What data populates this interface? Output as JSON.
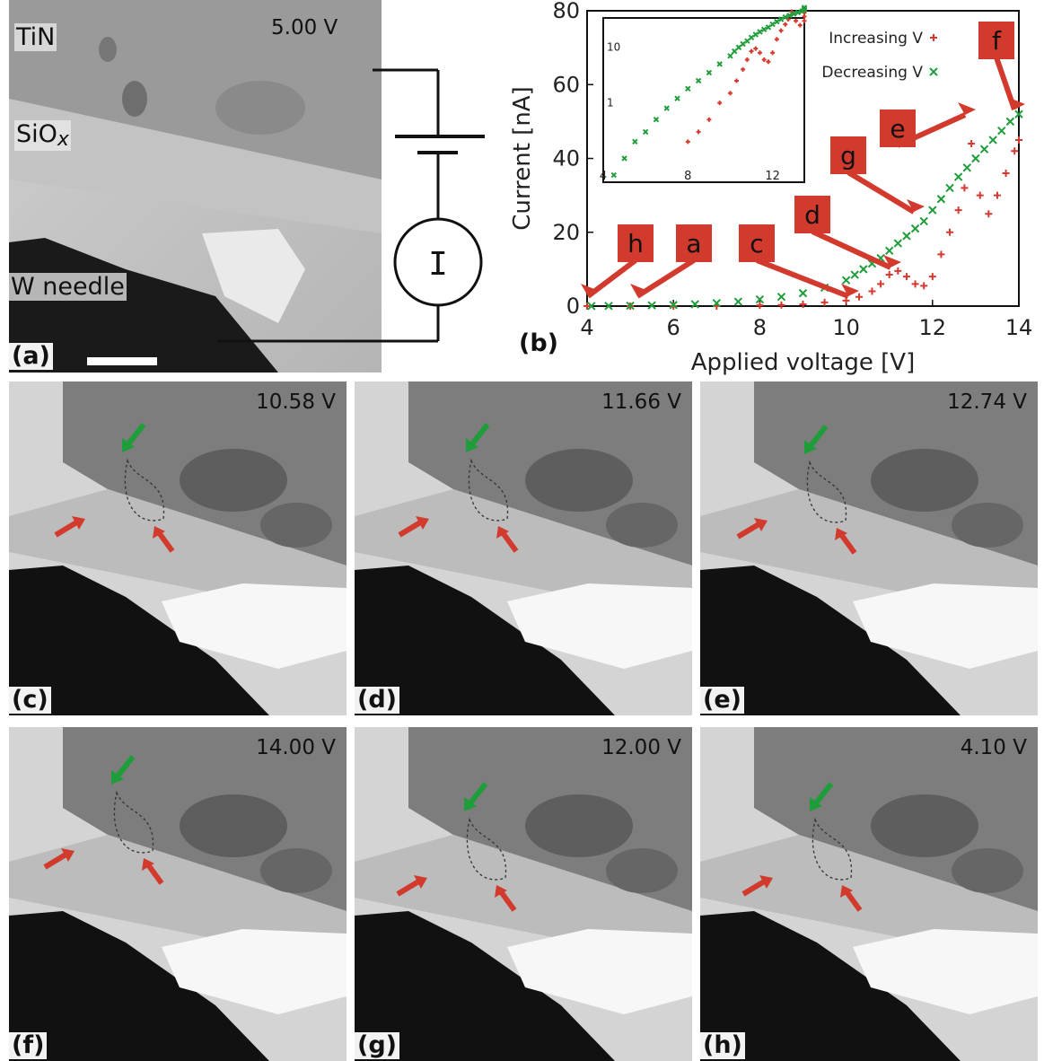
{
  "panel_a": {
    "label": "(a)",
    "voltage": "5.00 V",
    "layers": {
      "tin": "TiN",
      "siox": "SiO",
      "siox_sub": "x",
      "needle": "W needle"
    },
    "meter_symbol": "I"
  },
  "panel_b": {
    "label": "(b)",
    "annotations": [
      "h",
      "a",
      "c",
      "d",
      "g",
      "e",
      "f"
    ]
  },
  "tem_panels": [
    {
      "label": "(c)",
      "voltage": "10.58 V"
    },
    {
      "label": "(d)",
      "voltage": "11.66 V"
    },
    {
      "label": "(e)",
      "voltage": "12.74 V"
    },
    {
      "label": "(f)",
      "voltage": "14.00 V"
    },
    {
      "label": "(g)",
      "voltage": "12.00 V"
    },
    {
      "label": "(h)",
      "voltage": "4.10 V"
    }
  ],
  "colors": {
    "increasing": "#d43a2f",
    "decreasing": "#1f9d3a",
    "callout": "#d23a2e"
  },
  "chart_data": {
    "type": "scatter",
    "xlabel": "Applied voltage [V]",
    "ylabel": "Current [nA]",
    "xlim": [
      4,
      14
    ],
    "ylim": [
      0,
      80
    ],
    "xticks": [
      4,
      6,
      8,
      10,
      12,
      14
    ],
    "yticks": [
      0,
      20,
      40,
      60,
      80
    ],
    "legend_position": "top-right",
    "series": [
      {
        "name": "Increasing V",
        "marker": "+",
        "x": [
          4,
          5,
          6,
          7,
          8,
          8.5,
          9,
          9.5,
          10,
          10.3,
          10.6,
          10.8,
          11,
          11.2,
          11.4,
          11.6,
          11.8,
          12,
          12.2,
          12.4,
          12.6,
          12.74,
          12.9,
          13.1,
          13.3,
          13.5,
          13.7,
          13.9,
          14
        ],
        "y": [
          0,
          0,
          0,
          0,
          0.2,
          0.3,
          0.5,
          1,
          1.5,
          2.5,
          4,
          6,
          8.5,
          9.5,
          8,
          6,
          5.5,
          8,
          14,
          20,
          26,
          32,
          44,
          30,
          25,
          30,
          36,
          42,
          45
        ]
      },
      {
        "name": "Decreasing V",
        "marker": "x",
        "x": [
          14,
          13.8,
          13.6,
          13.4,
          13.2,
          13,
          12.8,
          12.6,
          12.4,
          12.2,
          12,
          11.8,
          11.6,
          11.4,
          11.2,
          11,
          10.8,
          10.6,
          10.4,
          10.2,
          10,
          9.5,
          9,
          8.5,
          8,
          7.5,
          7,
          6.5,
          6,
          5.5,
          5,
          4.5,
          4.1
        ],
        "y": [
          52,
          50,
          47.5,
          45,
          42.5,
          40,
          37.5,
          35,
          32,
          29,
          26,
          23,
          21,
          19,
          17,
          15,
          13,
          11.5,
          10,
          8.5,
          7,
          5,
          3.5,
          2.5,
          1.8,
          1.2,
          0.8,
          0.5,
          0.3,
          0.2,
          0.1,
          0.05,
          0.02
        ]
      }
    ],
    "inset": {
      "xticks": [
        4,
        8,
        12
      ],
      "yticks": [
        1,
        10
      ],
      "yscale": "log"
    }
  }
}
